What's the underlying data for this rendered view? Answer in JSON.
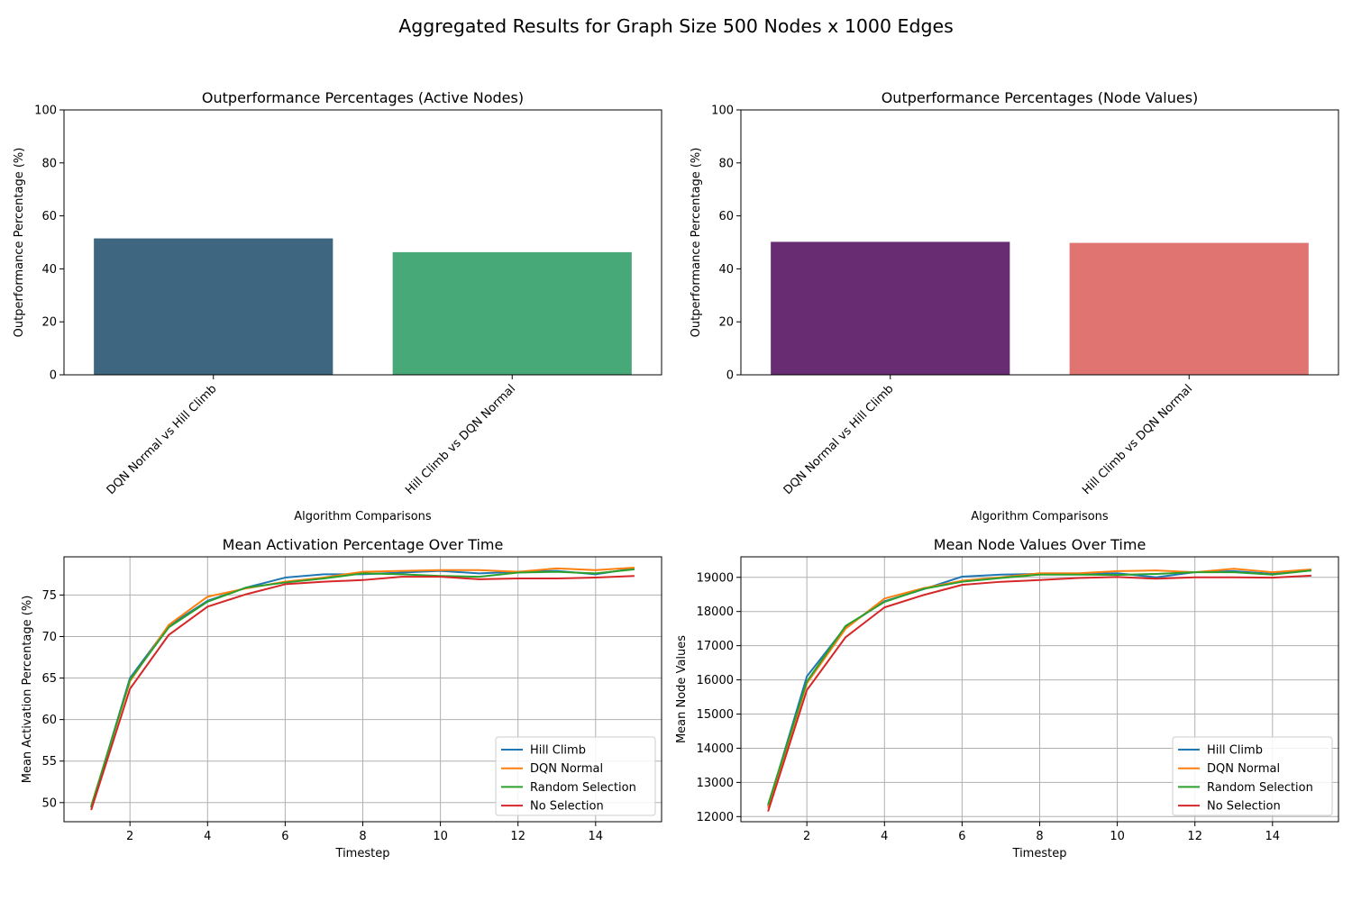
{
  "figure": {
    "title": "Aggregated Results for Graph Size 500 Nodes x 1000 Edges"
  },
  "chart_data": [
    {
      "type": "bar",
      "title": "Outperformance Percentages (Active Nodes)",
      "xlabel": "Algorithm Comparisons",
      "ylabel": "Outperformance Percentage (%)",
      "ylim": [
        0,
        100
      ],
      "yticks": [
        0,
        20,
        40,
        60,
        80,
        100
      ],
      "categories": [
        "DQN Normal vs Hill Climb",
        "Hill Climb vs DQN Normal"
      ],
      "values": [
        51.5,
        46.3
      ],
      "colors": [
        "#3e6680",
        "#47a878"
      ],
      "grid": false
    },
    {
      "type": "bar",
      "title": "Outperformance Percentages (Node Values)",
      "xlabel": "Algorithm Comparisons",
      "ylabel": "Outperformance Percentage (%)",
      "ylim": [
        0,
        100
      ],
      "yticks": [
        0,
        20,
        40,
        60,
        80,
        100
      ],
      "categories": [
        "DQN Normal vs Hill Climb",
        "Hill Climb vs DQN Normal"
      ],
      "values": [
        50.2,
        49.8
      ],
      "colors": [
        "#682c72",
        "#e07470"
      ],
      "grid": false
    },
    {
      "type": "line",
      "title": "Mean Activation Percentage Over Time",
      "xlabel": "Timestep",
      "ylabel": "Mean Activation Percentage (%)",
      "xlim": [
        0.3,
        15.7
      ],
      "ylim": [
        47.7,
        79.6
      ],
      "xticks": [
        2,
        4,
        6,
        8,
        10,
        12,
        14
      ],
      "yticks": [
        50,
        55,
        60,
        65,
        70,
        75
      ],
      "grid": true,
      "legend": "lower-right",
      "x": [
        1,
        2,
        3,
        4,
        5,
        6,
        7,
        8,
        9,
        10,
        11,
        12,
        13,
        14,
        15
      ],
      "series": [
        {
          "name": "Hill Climb",
          "color": "#1f77b4",
          "values": [
            49.4,
            65.0,
            71.3,
            74.3,
            75.9,
            77.1,
            77.5,
            77.5,
            77.7,
            77.9,
            77.6,
            77.8,
            77.9,
            77.5,
            78.2
          ]
        },
        {
          "name": "DQN Normal",
          "color": "#ff7f0e",
          "values": [
            49.6,
            64.6,
            71.4,
            74.8,
            75.8,
            76.6,
            77.1,
            77.8,
            77.9,
            78.0,
            78.0,
            77.8,
            78.2,
            78.0,
            78.3
          ]
        },
        {
          "name": "Random Selection",
          "color": "#2ca02c",
          "values": [
            49.5,
            64.8,
            71.1,
            74.2,
            75.9,
            76.5,
            77.0,
            77.6,
            77.5,
            77.3,
            77.2,
            77.7,
            77.8,
            77.6,
            78.1
          ]
        },
        {
          "name": "No Selection",
          "color": "#d62728",
          "values": [
            49.1,
            63.7,
            70.2,
            73.6,
            75.1,
            76.3,
            76.6,
            76.8,
            77.2,
            77.2,
            76.9,
            77.0,
            77.0,
            77.1,
            77.3
          ]
        }
      ]
    },
    {
      "type": "line",
      "title": "Mean Node Values Over Time",
      "xlabel": "Timestep",
      "ylabel": "Mean Node Values",
      "xlim": [
        0.3,
        15.7
      ],
      "ylim": [
        11850,
        19600
      ],
      "xticks": [
        2,
        4,
        6,
        8,
        10,
        12,
        14
      ],
      "yticks": [
        12000,
        13000,
        14000,
        15000,
        16000,
        17000,
        18000,
        19000
      ],
      "grid": true,
      "legend": "lower-right",
      "x": [
        1,
        2,
        3,
        4,
        5,
        6,
        7,
        8,
        9,
        10,
        11,
        12,
        13,
        14,
        15
      ],
      "series": [
        {
          "name": "Hill Climb",
          "color": "#1f77b4",
          "values": [
            12300,
            16100,
            17550,
            18300,
            18650,
            19020,
            19080,
            19100,
            19100,
            19120,
            19000,
            19150,
            19180,
            19100,
            19200
          ]
        },
        {
          "name": "DQN Normal",
          "color": "#ff7f0e",
          "values": [
            12250,
            15900,
            17500,
            18380,
            18680,
            18900,
            19000,
            19120,
            19120,
            19180,
            19200,
            19150,
            19250,
            19150,
            19230
          ]
        },
        {
          "name": "Random Selection",
          "color": "#2ca02c",
          "values": [
            12350,
            15950,
            17580,
            18280,
            18660,
            18870,
            18980,
            19080,
            19080,
            19070,
            19100,
            19150,
            19150,
            19080,
            19200
          ]
        },
        {
          "name": "No Selection",
          "color": "#d62728",
          "values": [
            12150,
            15700,
            17250,
            18120,
            18480,
            18780,
            18870,
            18920,
            18980,
            19010,
            18960,
            19000,
            19000,
            18990,
            19050
          ]
        }
      ]
    }
  ]
}
